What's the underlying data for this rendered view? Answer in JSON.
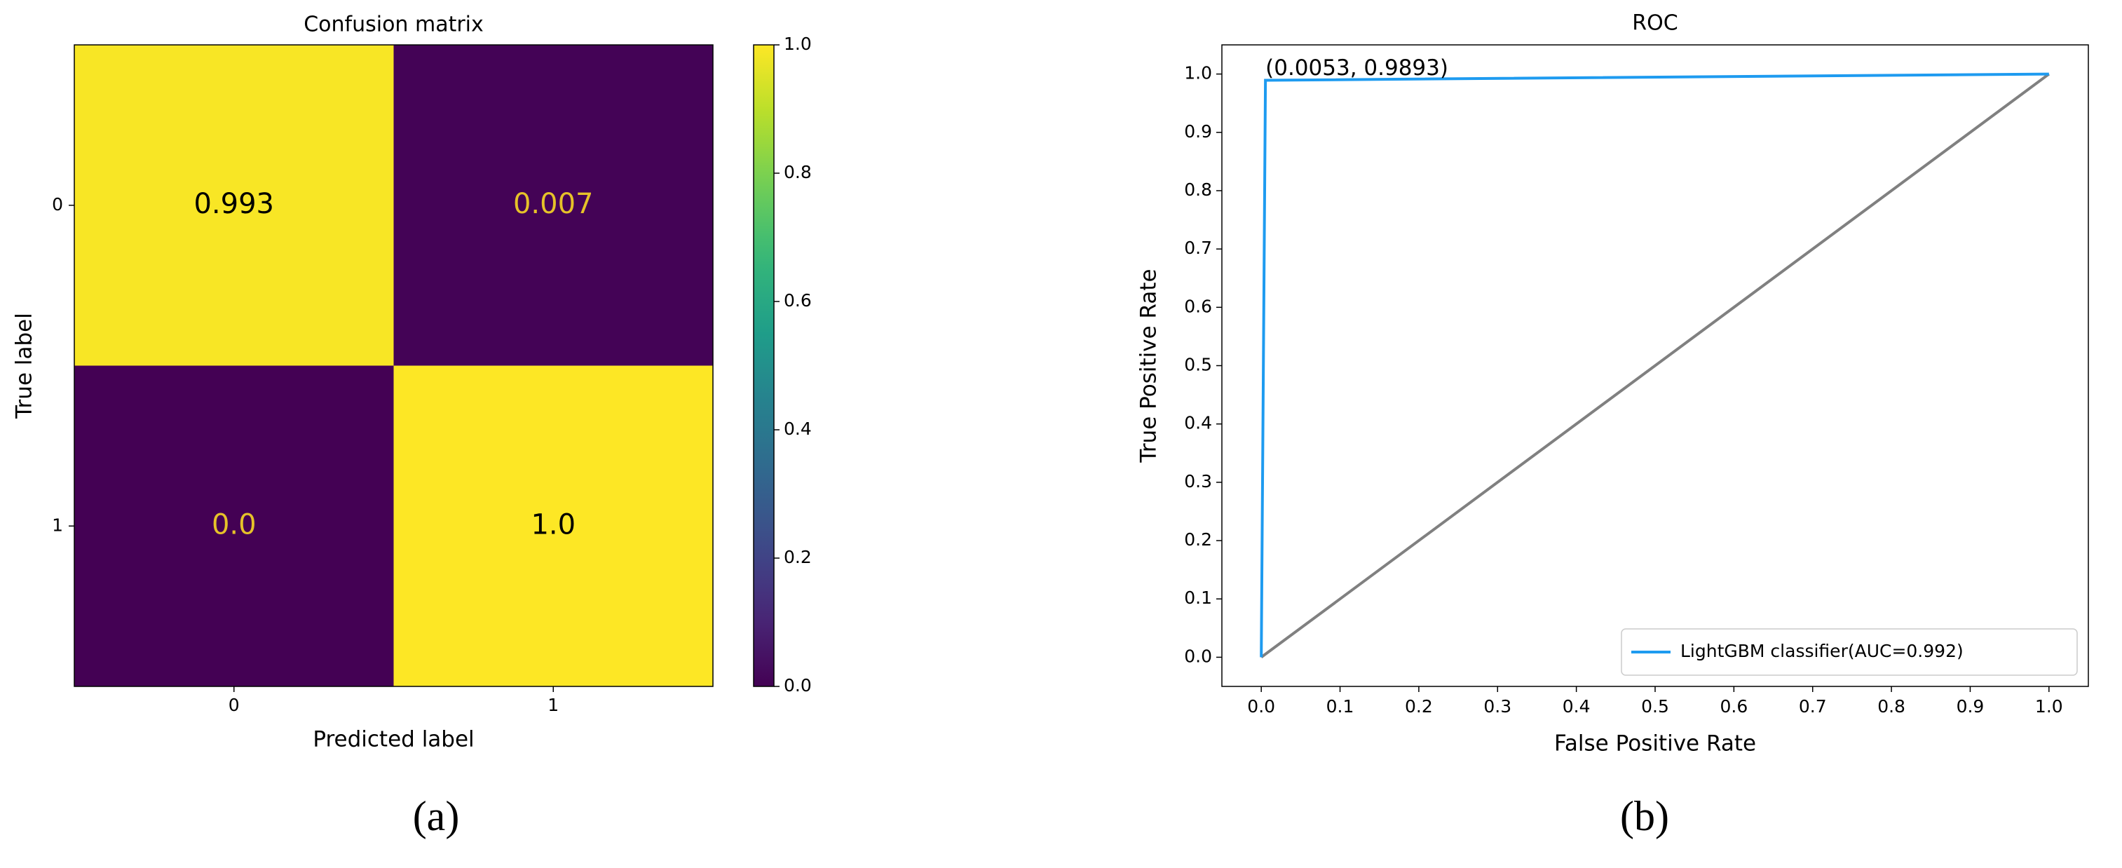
{
  "chart_data": [
    {
      "type": "heatmap",
      "title": "Confusion matrix",
      "xlabel": "Predicted label",
      "ylabel": "True label",
      "x_categories": [
        "0",
        "1"
      ],
      "y_categories": [
        "0",
        "1"
      ],
      "values": [
        [
          0.993,
          0.007
        ],
        [
          0.0,
          1.0
        ]
      ],
      "value_labels": [
        [
          "0.993",
          "0.007"
        ],
        [
          "0.0",
          "1.0"
        ]
      ],
      "colormap": "viridis",
      "clim": [
        0,
        1
      ],
      "cticks": [
        {
          "value": 0,
          "label": "0.0"
        },
        0.2,
        0.4,
        0.6,
        0.8,
        {
          "value": 1,
          "label": "1.0"
        }
      ],
      "panel_label": "(a)"
    },
    {
      "type": "line",
      "title": "ROC",
      "xlabel": "False Positive Rate",
      "ylabel": "True Positive Rate",
      "series": [
        {
          "name": "LightGBM classifier(AUC=0.992)",
          "color": "#1e9bf0",
          "x": [
            0,
            0.0053,
            1
          ],
          "values": [
            0,
            0.9893,
            1
          ]
        },
        {
          "color": "#808080",
          "x": [
            0,
            1
          ],
          "values": [
            0,
            1
          ]
        }
      ],
      "annotation": {
        "text": "(0.0053, 0.9893)",
        "x": 0.0053,
        "y": 0.9893
      },
      "xlim": [
        -0.05,
        1.05
      ],
      "ylim": [
        -0.05,
        1.05
      ],
      "xticks": [
        {
          "value": 0,
          "label": "0.0"
        },
        0.1,
        0.2,
        0.3,
        0.4,
        0.5,
        0.6,
        0.7,
        0.8,
        0.9,
        {
          "value": 1,
          "label": "1.0"
        }
      ],
      "yticks": [
        {
          "value": 0,
          "label": "0.0"
        },
        0.1,
        0.2,
        0.3,
        0.4,
        0.5,
        0.6,
        0.7,
        0.8,
        0.9,
        {
          "value": 1,
          "label": "1.0"
        }
      ],
      "legend": "lower right",
      "panel_label": "(b)"
    }
  ]
}
